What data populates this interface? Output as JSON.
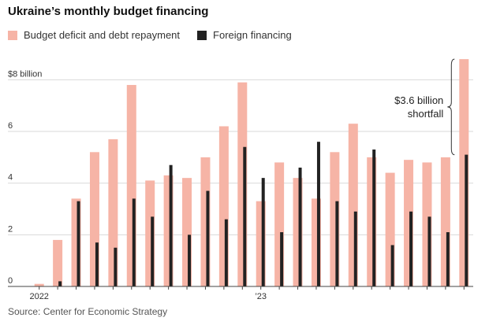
{
  "chart_data": {
    "type": "bar",
    "title": "Ukraine’s monthly budget financing",
    "source": "Source: Center for Economic Strategy",
    "y_unit_label": "$8 billion",
    "ylim": [
      0,
      9.2
    ],
    "y_ticks": [
      {
        "value": 0,
        "label": "0"
      },
      {
        "value": 2,
        "label": "2"
      },
      {
        "value": 4,
        "label": "4"
      },
      {
        "value": 6,
        "label": "6"
      },
      {
        "value": 8,
        "label": "$8 billion"
      }
    ],
    "x_tick_labels": [
      {
        "index": 0,
        "label": "2022"
      },
      {
        "index": 12,
        "label": "’23"
      }
    ],
    "legend_position": "top",
    "colors": {
      "deficit": "#f6b4a6",
      "foreign": "#222222",
      "grid": "#d9d9d9",
      "axis": "#444444"
    },
    "series": [
      {
        "name": "Budget deficit and debt repayment",
        "values": [
          0.1,
          1.8,
          3.4,
          5.2,
          5.7,
          7.8,
          4.1,
          4.3,
          4.2,
          5.0,
          6.2,
          7.9,
          3.3,
          4.8,
          4.2,
          3.4,
          5.2,
          6.3,
          5.0,
          4.4,
          4.9,
          4.8,
          5.0,
          8.8
        ]
      },
      {
        "name": "Foreign financing",
        "values": [
          0.0,
          0.2,
          3.3,
          1.7,
          1.5,
          3.4,
          2.7,
          4.7,
          2.0,
          3.7,
          2.6,
          5.4,
          4.2,
          2.1,
          4.6,
          5.6,
          3.3,
          2.9,
          5.3,
          1.6,
          2.9,
          2.7,
          2.1,
          5.1
        ]
      }
    ],
    "annotation": {
      "lines": [
        "$3.6 billion",
        "shortfall"
      ],
      "from": 5.1,
      "to": 8.8
    }
  }
}
